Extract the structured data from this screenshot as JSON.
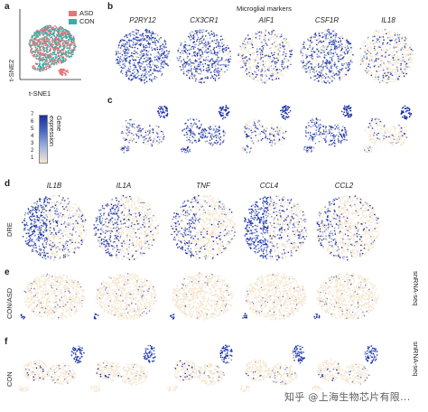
{
  "panels": {
    "a": {
      "letter": "a",
      "legend": [
        {
          "label": "ASD",
          "color": "#e8737a"
        },
        {
          "label": "CON",
          "color": "#34b0a8"
        }
      ],
      "xaxis": "t-SNE1",
      "yaxis": "t-SNE2",
      "colorbar": {
        "label": "Gene\nexpression",
        "ticks": [
          "7",
          "6",
          "5",
          "4",
          "3",
          "2",
          "1"
        ]
      }
    },
    "b": {
      "letter": "b",
      "title": "Microglial markers",
      "genes": [
        "P2RY12",
        "CX3CR1",
        "AIF1",
        "CSF1R",
        "IL18"
      ]
    },
    "c": {
      "letter": "c"
    },
    "d": {
      "letter": "d",
      "genes": [
        "IL1B",
        "IL1A",
        "TNF",
        "CCL4",
        "CCL2"
      ],
      "row_label": "DRE"
    },
    "e": {
      "letter": "e",
      "row_label": "CON/ASD",
      "side_label": "snRNA-seq"
    },
    "f": {
      "letter": "f",
      "row_label": "CON",
      "side_label": "snRNA-seq"
    }
  },
  "colors": {
    "high": "#1a2fa8",
    "mid": "#6f86cc",
    "low": "#f5e6cf",
    "asd": "#e8737a",
    "con": "#34b0a8"
  },
  "watermark": "知乎 @上海生物芯片有限..."
}
